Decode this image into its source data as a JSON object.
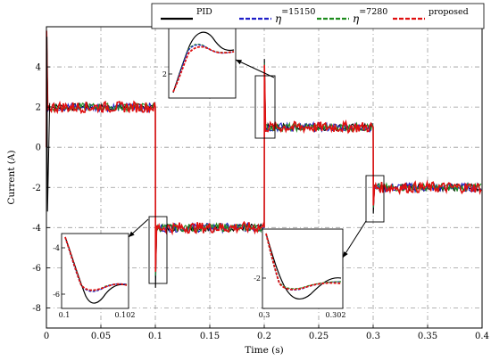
{
  "chart_data": {
    "type": "line",
    "xlabel": "Time (s)",
    "ylabel": "Current (A)",
    "xlim": [
      0,
      0.4
    ],
    "ylim": [
      -9,
      6
    ],
    "xticks": [
      "0",
      "0.05",
      "0.1",
      "0.15",
      "0.2",
      "0.25",
      "0.3",
      "0.35",
      "0.4"
    ],
    "yticks": [
      "4",
      "2",
      "0",
      "-2",
      "-4",
      "-6",
      "-8"
    ],
    "grid": true,
    "legend_position": "top",
    "series": [
      {
        "name": "PID",
        "color": "#000000",
        "style": "solid"
      },
      {
        "name": "η=15150",
        "color": "#1f1fc8",
        "style": "dashed"
      },
      {
        "name": "η=7280",
        "color": "#1e8c1e",
        "style": "dashed"
      },
      {
        "name": "proposed",
        "color": "#e01010",
        "style": "dashed"
      }
    ],
    "reference_steps": [
      {
        "x_start": 0.0,
        "x_end": 0.1,
        "y": 2
      },
      {
        "x_start": 0.1,
        "x_end": 0.2,
        "y": -4
      },
      {
        "x_start": 0.2,
        "x_end": 0.3,
        "y": 1
      },
      {
        "x_start": 0.3,
        "x_end": 0.4,
        "y": -2
      }
    ],
    "insets": [
      {
        "name": "inset-1",
        "xticks": [],
        "yticks": [
          "2"
        ]
      },
      {
        "name": "inset-2",
        "xticks": [
          "0.1",
          "0.102"
        ],
        "yticks": [
          "-4",
          "-6"
        ]
      },
      {
        "name": "inset-3",
        "xticks": [
          "0.3",
          "0.302"
        ],
        "yticks": [
          "-2"
        ]
      }
    ]
  },
  "legend": {
    "items": [
      {
        "label": "PID",
        "sup": ""
      },
      {
        "label": "η",
        "sup": "=15150"
      },
      {
        "label": "η",
        "sup": "=7280"
      },
      {
        "label": "proposed",
        "sup": ""
      }
    ]
  }
}
